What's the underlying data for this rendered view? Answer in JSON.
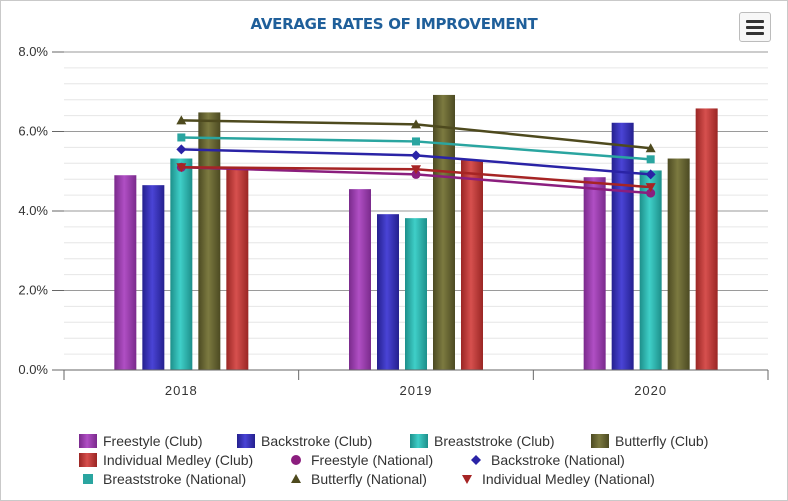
{
  "chart_data": {
    "type": "bar",
    "title": "AVERAGE RATES OF IMPROVEMENT",
    "categories": [
      "2018",
      "2019",
      "2020"
    ],
    "ylim": [
      0,
      8
    ],
    "yticks": [
      "0.0%",
      "2.0%",
      "4.0%",
      "6.0%",
      "8.0%"
    ],
    "ytick_values": [
      0,
      2,
      4,
      6,
      8
    ],
    "xlabel": "",
    "ylabel": "",
    "bar_series": [
      {
        "name": "Freestyle (Club)",
        "values": [
          4.9,
          4.55,
          4.85
        ],
        "color": "#b04fc4",
        "dark": "#7a2a8c"
      },
      {
        "name": "Backstroke (Club)",
        "values": [
          4.65,
          3.92,
          6.22
        ],
        "color": "#4a44d6",
        "dark": "#24208e"
      },
      {
        "name": "Breaststroke (Club)",
        "values": [
          5.32,
          3.82,
          5.02
        ],
        "color": "#3fcfc8",
        "dark": "#1d8f8a"
      },
      {
        "name": "Butterfly (Club)",
        "values": [
          6.48,
          6.92,
          5.32
        ],
        "color": "#7c7a40",
        "dark": "#4c4a22"
      },
      {
        "name": "Individual Medley (Club)",
        "values": [
          5.08,
          5.28,
          6.58
        ],
        "color": "#d6504e",
        "dark": "#9a2624"
      }
    ],
    "line_series": [
      {
        "name": "Freestyle (National)",
        "values": [
          5.1,
          4.92,
          4.45
        ],
        "color": "#8b1e7e",
        "marker": "circle"
      },
      {
        "name": "Backstroke (National)",
        "values": [
          5.55,
          5.4,
          4.92
        ],
        "color": "#2a23a6",
        "marker": "diamond"
      },
      {
        "name": "Breaststroke (National)",
        "values": [
          5.85,
          5.75,
          5.3
        ],
        "color": "#2aa5a0",
        "marker": "square"
      },
      {
        "name": "Butterfly (National)",
        "values": [
          6.28,
          6.18,
          5.58
        ],
        "color": "#4e4a1e",
        "marker": "triangle"
      },
      {
        "name": "Individual Medley (National)",
        "values": [
          5.1,
          5.05,
          4.6
        ],
        "color": "#a62424",
        "marker": "triangle-down"
      }
    ]
  },
  "toolbar": {
    "menu_icon": "hamburger-menu-icon"
  }
}
